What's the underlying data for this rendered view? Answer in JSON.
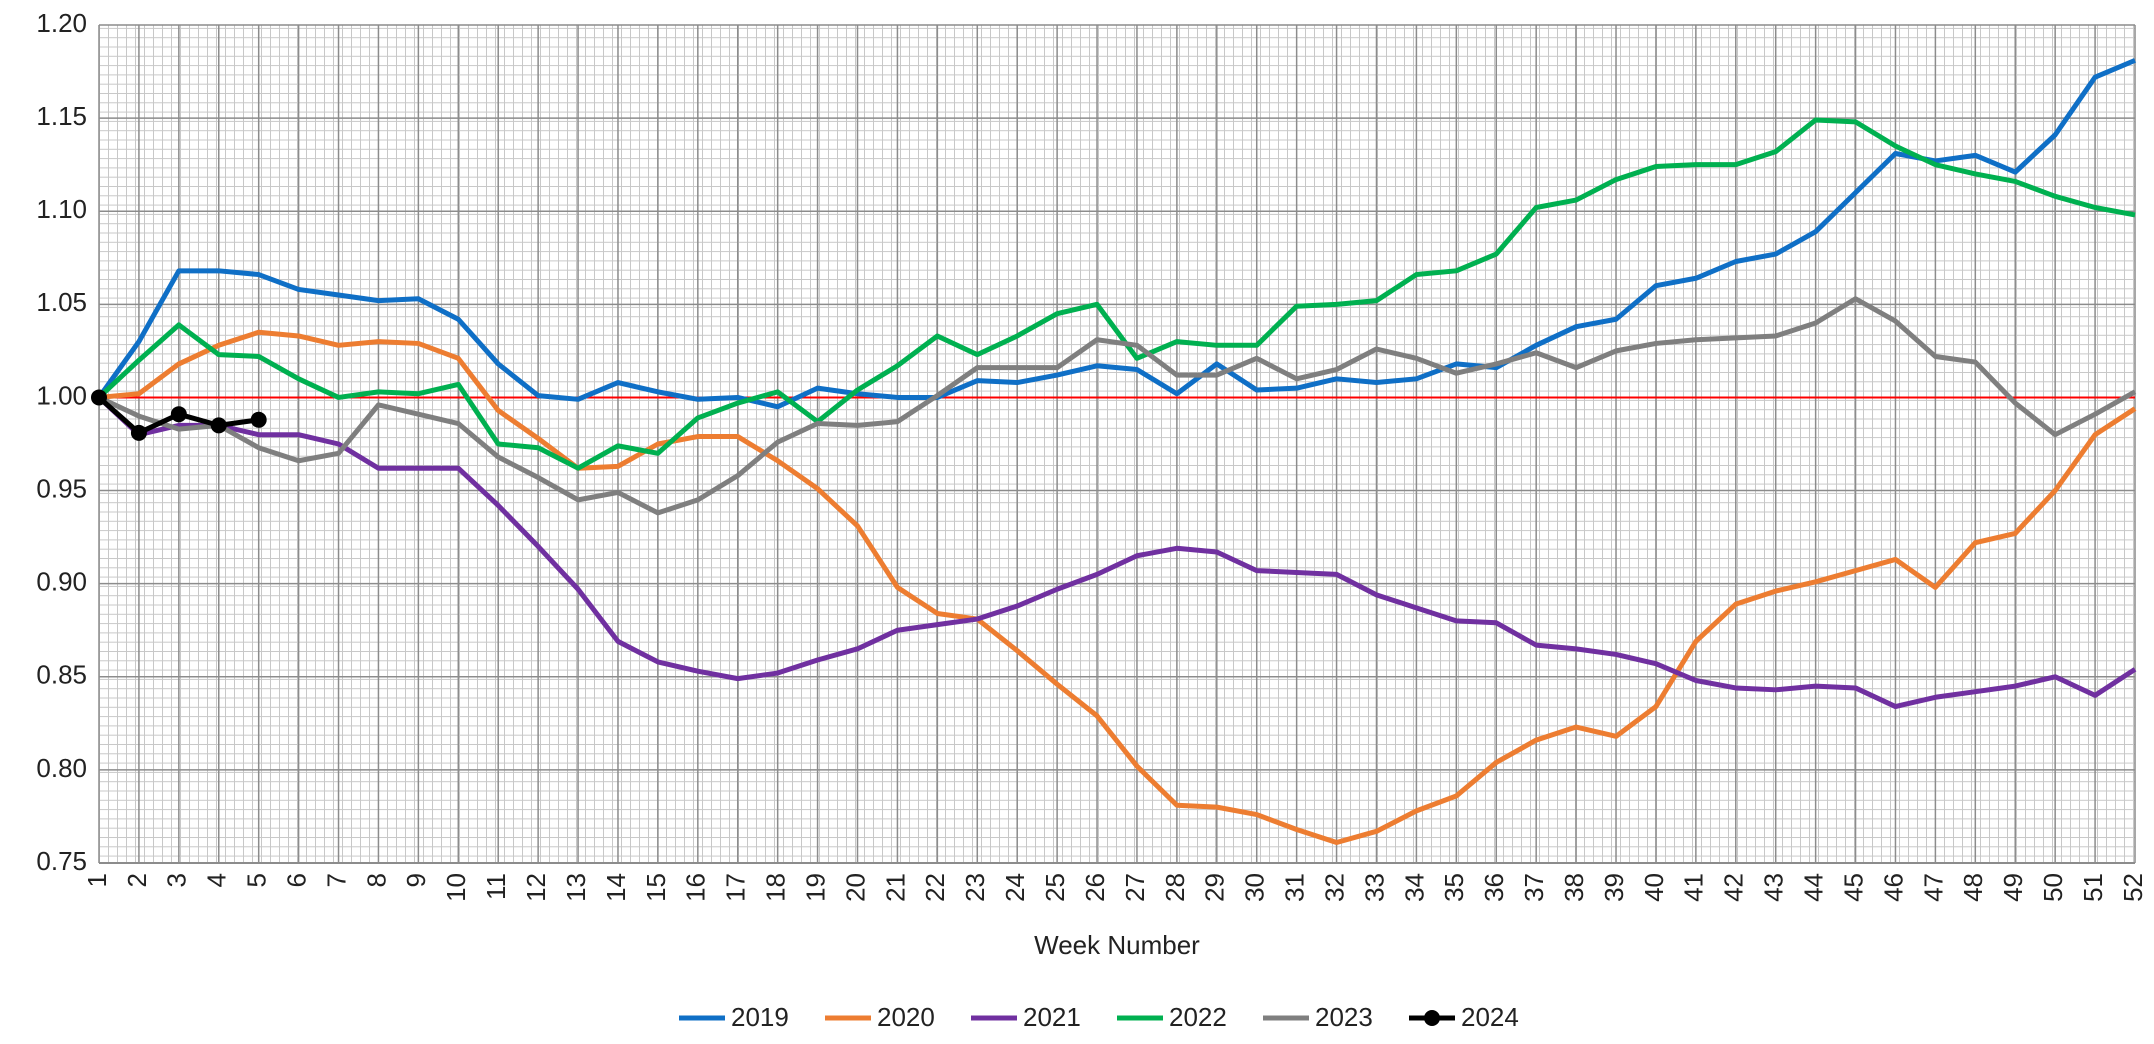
{
  "chart_data": {
    "type": "line",
    "xlabel": "Week Number",
    "x": [
      1,
      2,
      3,
      4,
      5,
      6,
      7,
      8,
      9,
      10,
      11,
      12,
      13,
      14,
      15,
      16,
      17,
      18,
      19,
      20,
      21,
      22,
      23,
      24,
      25,
      26,
      27,
      28,
      29,
      30,
      31,
      32,
      33,
      34,
      35,
      36,
      37,
      38,
      39,
      40,
      41,
      42,
      43,
      44,
      45,
      46,
      47,
      48,
      49,
      50,
      51,
      52
    ],
    "xlim": [
      1,
      52
    ],
    "xticks": [
      1,
      2,
      3,
      4,
      5,
      6,
      7,
      8,
      9,
      10,
      11,
      12,
      13,
      14,
      15,
      16,
      17,
      18,
      19,
      20,
      21,
      22,
      23,
      24,
      25,
      26,
      27,
      28,
      29,
      30,
      31,
      32,
      33,
      34,
      35,
      36,
      37,
      38,
      39,
      40,
      41,
      42,
      43,
      44,
      45,
      46,
      47,
      48,
      49,
      50,
      51,
      52
    ],
    "ylim": [
      0.75,
      1.2
    ],
    "yticks": [
      0.75,
      {
        "value": 0.8,
        "label": "0.80"
      },
      0.85,
      {
        "value": 0.9,
        "label": "0.90"
      },
      0.95,
      {
        "value": 1,
        "label": "1.00"
      },
      1.05,
      {
        "value": 1.1,
        "label": "1.10"
      },
      1.15,
      {
        "value": 1.2,
        "label": "1.20"
      }
    ],
    "grid": true,
    "hline": {
      "value": 1,
      "color": "#ff0000"
    },
    "legend": "bottom",
    "series": [
      {
        "name": "2019",
        "color": "#0f6fc6",
        "values": [
          1.0,
          1.03,
          1.068,
          1.068,
          1.066,
          1.058,
          1.055,
          1.052,
          1.053,
          1.042,
          1.018,
          1.001,
          0.999,
          1.008,
          1.003,
          0.999,
          1.0,
          0.995,
          1.005,
          1.002,
          1.0,
          1.0,
          1.009,
          1.008,
          1.012,
          1.017,
          1.015,
          1.002,
          1.018,
          1.004,
          1.005,
          1.01,
          1.008,
          1.01,
          1.018,
          1.016,
          1.028,
          1.038,
          1.042,
          1.06,
          1.064,
          1.073,
          1.077,
          1.089,
          1.11,
          1.131,
          1.127,
          1.13,
          1.121,
          1.141,
          1.172,
          1.181
        ]
      },
      {
        "name": "2020",
        "color": "#ed7d31",
        "values": [
          1.0,
          1.002,
          1.018,
          1.028,
          1.035,
          1.033,
          1.028,
          1.03,
          1.029,
          1.021,
          0.993,
          0.978,
          0.962,
          0.963,
          0.975,
          0.979,
          0.979,
          0.966,
          0.951,
          0.931,
          0.898,
          0.884,
          0.881,
          0.864,
          0.846,
          0.829,
          0.802,
          0.781,
          0.78,
          0.776,
          0.768,
          0.761,
          0.767,
          0.778,
          0.786,
          0.804,
          0.816,
          0.823,
          0.818,
          0.834,
          0.869,
          0.889,
          0.896,
          0.901,
          0.907,
          0.913,
          0.898,
          0.922,
          0.927,
          0.95,
          0.98,
          0.994
        ]
      },
      {
        "name": "2021",
        "color": "#7030a0",
        "values": [
          1.0,
          0.98,
          0.985,
          0.985,
          0.98,
          0.98,
          0.975,
          0.962,
          0.962,
          0.962,
          0.942,
          0.92,
          0.897,
          0.869,
          0.858,
          0.853,
          0.849,
          0.852,
          0.859,
          0.865,
          0.875,
          0.878,
          0.881,
          0.888,
          0.897,
          0.905,
          0.915,
          0.919,
          0.917,
          0.907,
          0.906,
          0.905,
          0.894,
          0.887,
          0.88,
          0.879,
          0.867,
          0.865,
          0.862,
          0.857,
          0.848,
          0.844,
          0.843,
          0.845,
          0.844,
          0.834,
          0.839,
          0.842,
          0.845,
          0.85,
          0.84,
          0.854
        ]
      },
      {
        "name": "2022",
        "color": "#00b050",
        "values": [
          1.0,
          1.02,
          1.039,
          1.023,
          1.022,
          1.01,
          1.0,
          1.003,
          1.002,
          1.007,
          0.975,
          0.973,
          0.962,
          0.974,
          0.97,
          0.989,
          0.997,
          1.003,
          0.987,
          1.004,
          1.017,
          1.033,
          1.023,
          1.033,
          1.045,
          1.05,
          1.021,
          1.03,
          1.028,
          1.028,
          1.049,
          1.05,
          1.052,
          1.066,
          1.068,
          1.077,
          1.102,
          1.106,
          1.117,
          1.124,
          1.125,
          1.125,
          1.132,
          1.149,
          1.148,
          1.135,
          1.125,
          1.12,
          1.116,
          1.108,
          1.102,
          1.098
        ]
      },
      {
        "name": "2023",
        "color": "#7f7f7f",
        "values": [
          1.0,
          0.99,
          0.983,
          0.985,
          0.973,
          0.966,
          0.97,
          0.996,
          0.991,
          0.986,
          0.968,
          0.957,
          0.945,
          0.949,
          0.938,
          0.945,
          0.958,
          0.976,
          0.986,
          0.985,
          0.987,
          1.001,
          1.016,
          1.016,
          1.016,
          1.031,
          1.028,
          1.012,
          1.012,
          1.021,
          1.01,
          1.015,
          1.026,
          1.021,
          1.013,
          1.018,
          1.024,
          1.016,
          1.025,
          1.029,
          1.031,
          1.032,
          1.033,
          1.04,
          1.053,
          1.041,
          1.022,
          1.019,
          0.997,
          0.98,
          0.991,
          1.003
        ]
      },
      {
        "name": "2024",
        "color": "#000000",
        "marker": true,
        "values": [
          1.0,
          0.981,
          0.991,
          0.985,
          0.988,
          null,
          null,
          null,
          null,
          null,
          null,
          null,
          null,
          null,
          null,
          null,
          null,
          null,
          null,
          null,
          null,
          null,
          null,
          null,
          null,
          null,
          null,
          null,
          null,
          null,
          null,
          null,
          null,
          null,
          null,
          null,
          null,
          null,
          null,
          null,
          null,
          null,
          null,
          null,
          null,
          null,
          null,
          null,
          null,
          null,
          null,
          null
        ]
      }
    ]
  }
}
